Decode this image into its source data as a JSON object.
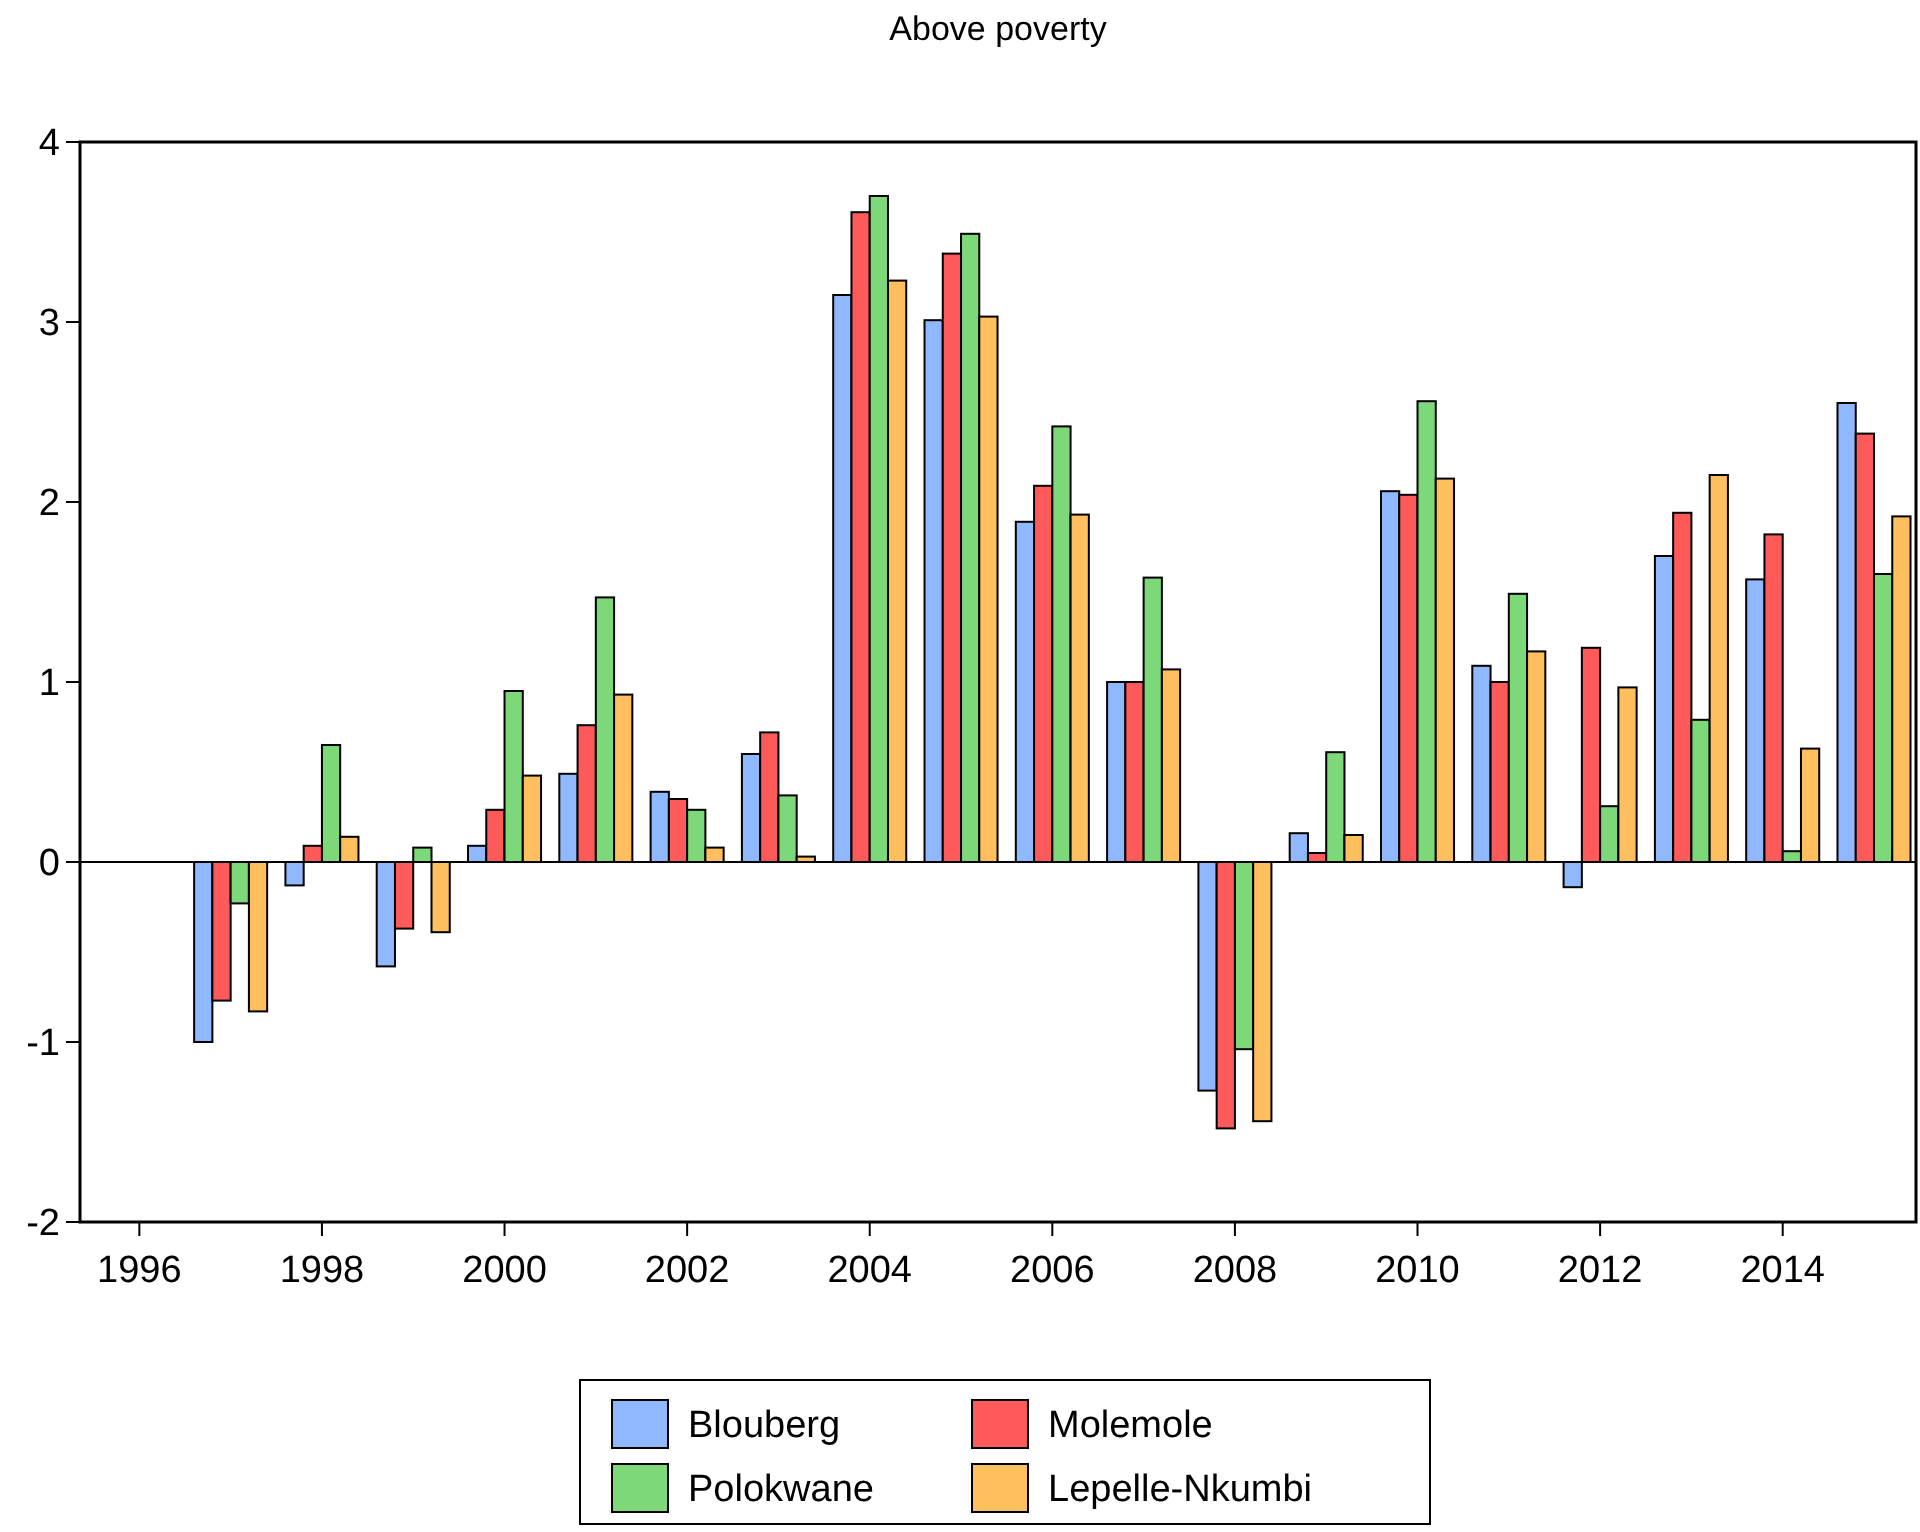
{
  "chart_data": {
    "type": "bar",
    "title": "Above poverty",
    "x": [
      1997,
      1998,
      1999,
      2000,
      2001,
      2002,
      2003,
      2004,
      2005,
      2006,
      2007,
      2008,
      2009,
      2010,
      2011,
      2012,
      2013,
      2014,
      2015
    ],
    "series": [
      {
        "name": "Blouberg",
        "color": "#8fb8ff",
        "values": [
          -1.0,
          -0.13,
          -0.58,
          0.09,
          0.49,
          0.39,
          0.6,
          3.15,
          3.01,
          1.89,
          1.0,
          -1.27,
          0.16,
          2.06,
          1.09,
          -0.14,
          1.7,
          1.57,
          2.55
        ]
      },
      {
        "name": "Molemole",
        "color": "#ff5a5a",
        "values": [
          -0.77,
          0.09,
          -0.37,
          0.29,
          0.76,
          0.35,
          0.72,
          3.61,
          3.38,
          2.09,
          1.0,
          -1.48,
          0.05,
          2.04,
          1.0,
          1.19,
          1.94,
          1.82,
          2.38
        ]
      },
      {
        "name": "Polokwane",
        "color": "#7dd87a",
        "values": [
          -0.23,
          0.65,
          0.08,
          0.95,
          1.47,
          0.29,
          0.37,
          3.7,
          3.49,
          2.42,
          1.58,
          -1.04,
          0.61,
          2.56,
          1.49,
          0.31,
          0.79,
          0.06,
          1.6
        ]
      },
      {
        "name": "Lepelle-Nkumbi",
        "color": "#ffbf5e",
        "values": [
          -0.83,
          0.14,
          -0.39,
          0.48,
          0.93,
          0.08,
          0.03,
          3.23,
          3.03,
          1.93,
          1.07,
          -1.44,
          0.15,
          2.13,
          1.17,
          0.97,
          2.15,
          0.63,
          1.92
        ]
      }
    ],
    "xlim": [
      1995.35,
      2015.46
    ],
    "xticks": [
      1996,
      1998,
      2000,
      2002,
      2004,
      2006,
      2008,
      2010,
      2012,
      2014
    ],
    "ylim": [
      -2,
      4
    ],
    "yticks": [
      -2,
      -1,
      0,
      1,
      2,
      3,
      4
    ],
    "ref_lines": [
      {
        "axis": "y",
        "value": 0
      }
    ],
    "legend": "bottom"
  }
}
